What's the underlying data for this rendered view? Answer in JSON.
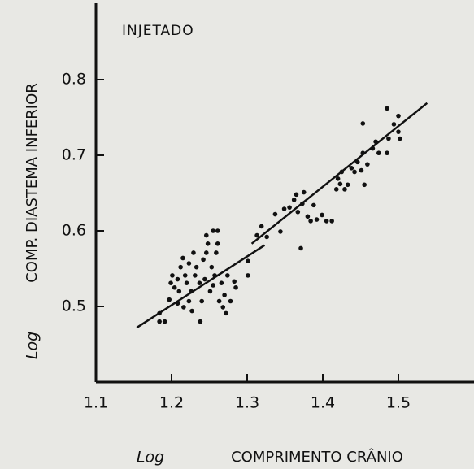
{
  "chart_data": {
    "type": "scatter",
    "annotation": "INJETADO",
    "y_label": {
      "prefix": "Log",
      "text": "COMP. DIASTEMA INFERIOR"
    },
    "x_label": {
      "prefix": "Log",
      "text": "COMPRIMENTO CRÂNIO"
    },
    "color": "#111111",
    "xlim": [
      1.1,
      1.6
    ],
    "ylim": [
      0.4,
      0.9
    ],
    "xticks": [
      1.1,
      1.2,
      1.3,
      1.4,
      1.5
    ],
    "yticks": [
      0.5,
      0.6,
      0.7,
      0.8
    ],
    "x": [
      1.184,
      1.191,
      1.184,
      1.197,
      1.199,
      1.201,
      1.204,
      1.208,
      1.21,
      1.212,
      1.215,
      1.218,
      1.22,
      1.223,
      1.226,
      1.229,
      1.231,
      1.233,
      1.237,
      1.24,
      1.242,
      1.244,
      1.246,
      1.248,
      1.251,
      1.253,
      1.255,
      1.257,
      1.259,
      1.261,
      1.263,
      1.266,
      1.268,
      1.27,
      1.272,
      1.274,
      1.278,
      1.285,
      1.223,
      1.238,
      1.227,
      1.216,
      1.208,
      1.255,
      1.261,
      1.246,
      1.283,
      1.301,
      1.301,
      1.313,
      1.319,
      1.326,
      1.337,
      1.344,
      1.349,
      1.356,
      1.362,
      1.365,
      1.367,
      1.371,
      1.373,
      1.375,
      1.38,
      1.384,
      1.388,
      1.392,
      1.399,
      1.405,
      1.412,
      1.418,
      1.42,
      1.423,
      1.425,
      1.429,
      1.433,
      1.438,
      1.442,
      1.446,
      1.451,
      1.453,
      1.455,
      1.459,
      1.466,
      1.47,
      1.474,
      1.485,
      1.487,
      1.485,
      1.494,
      1.5,
      1.5,
      1.502,
      1.453
    ],
    "values": [
      0.491,
      0.48,
      0.48,
      0.509,
      0.531,
      0.541,
      0.525,
      0.536,
      0.52,
      0.552,
      0.564,
      0.541,
      0.531,
      0.557,
      0.52,
      0.571,
      0.541,
      0.552,
      0.531,
      0.507,
      0.562,
      0.536,
      0.571,
      0.583,
      0.52,
      0.552,
      0.528,
      0.541,
      0.571,
      0.583,
      0.507,
      0.531,
      0.499,
      0.515,
      0.491,
      0.541,
      0.507,
      0.525,
      0.507,
      0.48,
      0.494,
      0.499,
      0.504,
      0.6,
      0.6,
      0.594,
      0.533,
      0.541,
      0.56,
      0.594,
      0.606,
      0.592,
      0.622,
      0.599,
      0.629,
      0.631,
      0.641,
      0.648,
      0.625,
      0.577,
      0.636,
      0.651,
      0.619,
      0.613,
      0.634,
      0.615,
      0.621,
      0.613,
      0.613,
      0.655,
      0.669,
      0.662,
      0.678,
      0.655,
      0.661,
      0.683,
      0.678,
      0.691,
      0.68,
      0.703,
      0.661,
      0.688,
      0.709,
      0.718,
      0.703,
      0.703,
      0.722,
      0.762,
      0.741,
      0.752,
      0.731,
      0.722,
      0.742
    ],
    "fit_lines": [
      {
        "x": [
          1.154,
          1.323
        ],
        "y": [
          0.472,
          0.581
        ]
      },
      {
        "x": [
          1.306,
          1.538
        ],
        "y": [
          0.583,
          0.769
        ]
      }
    ]
  }
}
